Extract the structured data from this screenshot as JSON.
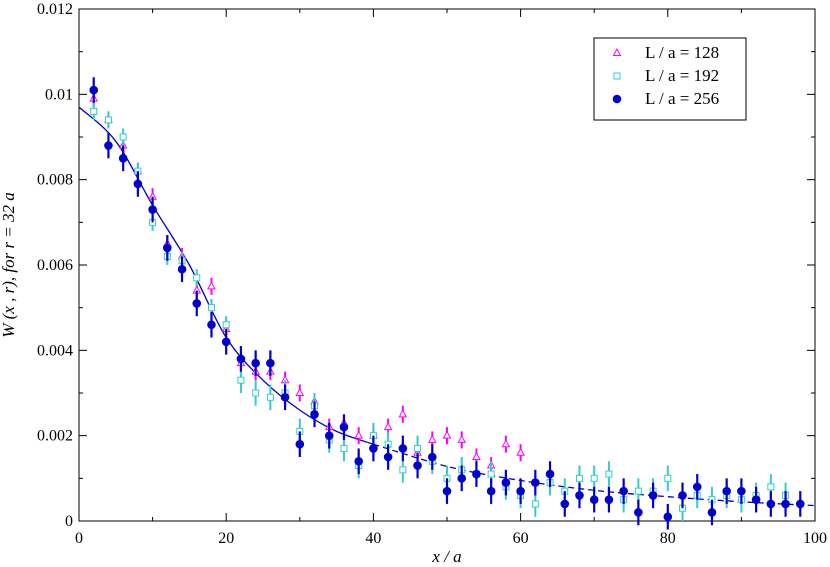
{
  "chart_data": {
    "type": "scatter",
    "xlabel": "x / a",
    "ylabel": "W (x , r),  for r = 32 a",
    "xlim": [
      0,
      100
    ],
    "ylim": [
      0,
      0.012
    ],
    "x_ticks": [
      "0",
      "20",
      "40",
      "60",
      "80",
      "100"
    ],
    "y_ticks": [
      "0",
      "0.002",
      "0.004",
      "0.006",
      "0.008",
      "0.01",
      "0.012"
    ],
    "grid": false,
    "legend_position": "top-right",
    "legend": [
      "L / a = 128",
      "L / a = 192",
      "L / a = 256"
    ],
    "colors": {
      "L128": "#ff00ff",
      "L192": "#33cccc",
      "L256": "#0000cc",
      "fit": "#0000cc"
    },
    "series": [
      {
        "name": "L / a = 128",
        "marker": "triangle",
        "x": [
          2,
          4,
          6,
          8,
          10,
          12,
          14,
          16,
          18,
          20,
          22,
          24,
          26,
          28,
          30,
          32,
          34,
          36,
          38,
          40,
          42,
          44,
          46,
          48,
          50,
          52,
          54,
          56,
          58,
          60
        ],
        "y": [
          0.0099,
          0.0094,
          0.0088,
          0.0082,
          0.0076,
          0.0065,
          0.0062,
          0.0054,
          0.0055,
          0.0045,
          0.0037,
          0.0035,
          0.0035,
          0.0033,
          0.003,
          0.0028,
          0.0022,
          0.0023,
          0.002,
          0.002,
          0.0022,
          0.0025,
          0.0016,
          0.0019,
          0.002,
          0.0019,
          0.0015,
          0.0013,
          0.0018,
          0.0016
        ],
        "err": [
          0.0002,
          0.0002,
          0.0002,
          0.0002,
          0.0002,
          0.0002,
          0.0002,
          0.0002,
          0.0002,
          0.0002,
          0.0002,
          0.0002,
          0.0002,
          0.0002,
          0.0002,
          0.0002,
          0.0002,
          0.0002,
          0.0002,
          0.0002,
          0.0002,
          0.0002,
          0.0002,
          0.0002,
          0.0002,
          0.0002,
          0.0002,
          0.0002,
          0.0002,
          0.0002
        ]
      },
      {
        "name": "L / a = 192",
        "marker": "square",
        "x": [
          2,
          4,
          6,
          8,
          10,
          12,
          14,
          16,
          18,
          20,
          22,
          24,
          26,
          28,
          30,
          32,
          34,
          36,
          38,
          40,
          42,
          44,
          46,
          48,
          50,
          52,
          54,
          56,
          58,
          60,
          62,
          64,
          66,
          68,
          70,
          72,
          74,
          76,
          78,
          80,
          82,
          84,
          86,
          88,
          90,
          92,
          94,
          96
        ],
        "y": [
          0.0096,
          0.0094,
          0.009,
          0.0082,
          0.007,
          0.0062,
          0.0061,
          0.0057,
          0.005,
          0.0046,
          0.0033,
          0.003,
          0.0029,
          0.003,
          0.0021,
          0.0027,
          0.0019,
          0.0017,
          0.0013,
          0.002,
          0.0018,
          0.0012,
          0.0017,
          0.0014,
          0.001,
          0.0012,
          0.0011,
          0.0011,
          0.0008,
          0.0006,
          0.0004,
          0.0009,
          0.0007,
          0.001,
          0.001,
          0.0011,
          0.0005,
          0.0007,
          0.0007,
          0.001,
          0.0003,
          0.0006,
          0.0005,
          0.0006,
          0.0005,
          0.0006,
          0.0008,
          0.0006
        ],
        "err": [
          0.0002,
          0.0002,
          0.0002,
          0.0002,
          0.0002,
          0.0002,
          0.0002,
          0.0002,
          0.0002,
          0.0002,
          0.0003,
          0.0003,
          0.0003,
          0.0003,
          0.0003,
          0.0003,
          0.0003,
          0.0003,
          0.0003,
          0.0003,
          0.0003,
          0.0003,
          0.0003,
          0.0003,
          0.0003,
          0.0003,
          0.0003,
          0.0003,
          0.0003,
          0.0003,
          0.0003,
          0.0003,
          0.0003,
          0.0003,
          0.0003,
          0.0003,
          0.0003,
          0.0003,
          0.0003,
          0.0003,
          0.0003,
          0.0003,
          0.0003,
          0.0003,
          0.0003,
          0.0003,
          0.0003,
          0.0003
        ]
      },
      {
        "name": "L / a = 256",
        "marker": "circle",
        "x": [
          2,
          4,
          6,
          8,
          10,
          12,
          14,
          16,
          18,
          20,
          22,
          24,
          26,
          28,
          30,
          32,
          34,
          36,
          38,
          40,
          42,
          44,
          46,
          48,
          50,
          52,
          54,
          56,
          58,
          60,
          62,
          64,
          66,
          68,
          70,
          72,
          74,
          76,
          78,
          80,
          82,
          84,
          86,
          88,
          90,
          92,
          94,
          96,
          98
        ],
        "y": [
          0.0101,
          0.0088,
          0.0085,
          0.0079,
          0.0073,
          0.0064,
          0.0059,
          0.0051,
          0.0046,
          0.0042,
          0.0038,
          0.0037,
          0.0037,
          0.0029,
          0.0018,
          0.0025,
          0.002,
          0.0022,
          0.0014,
          0.0017,
          0.0015,
          0.0017,
          0.0013,
          0.0015,
          0.0007,
          0.001,
          0.0011,
          0.0007,
          0.0009,
          0.0007,
          0.0009,
          0.0011,
          0.0004,
          0.0006,
          0.0005,
          0.0005,
          0.0007,
          0.0002,
          0.0006,
          0.0001,
          0.0006,
          0.0008,
          0.0002,
          0.0007,
          0.0007,
          0.0005,
          0.0004,
          0.0004,
          0.0004
        ],
        "err": [
          0.0003,
          0.0003,
          0.0003,
          0.0003,
          0.0003,
          0.0003,
          0.0003,
          0.0003,
          0.0003,
          0.0003,
          0.0003,
          0.0003,
          0.0003,
          0.0003,
          0.0003,
          0.0003,
          0.0003,
          0.0003,
          0.0003,
          0.0003,
          0.0003,
          0.0003,
          0.0003,
          0.0003,
          0.0003,
          0.0003,
          0.0003,
          0.0003,
          0.0003,
          0.0003,
          0.0003,
          0.0003,
          0.0003,
          0.0003,
          0.0003,
          0.0003,
          0.0003,
          0.0003,
          0.0003,
          0.0003,
          0.0003,
          0.0003,
          0.0003,
          0.0003,
          0.0003,
          0.0003,
          0.0003,
          0.0003,
          0.0003
        ]
      }
    ],
    "fit_curve": {
      "solid": {
        "x": [
          0,
          5,
          10,
          15,
          20,
          25,
          30,
          35,
          40
        ],
        "y": [
          0.0097,
          0.0089,
          0.0074,
          0.006,
          0.0043,
          0.0033,
          0.0026,
          0.0021,
          0.0018
        ]
      },
      "dashed": {
        "x": [
          40,
          50,
          60,
          70,
          80,
          90,
          100
        ],
        "y": [
          0.0018,
          0.00128,
          0.00095,
          0.00072,
          0.00057,
          0.00045,
          0.00036
        ]
      }
    }
  }
}
